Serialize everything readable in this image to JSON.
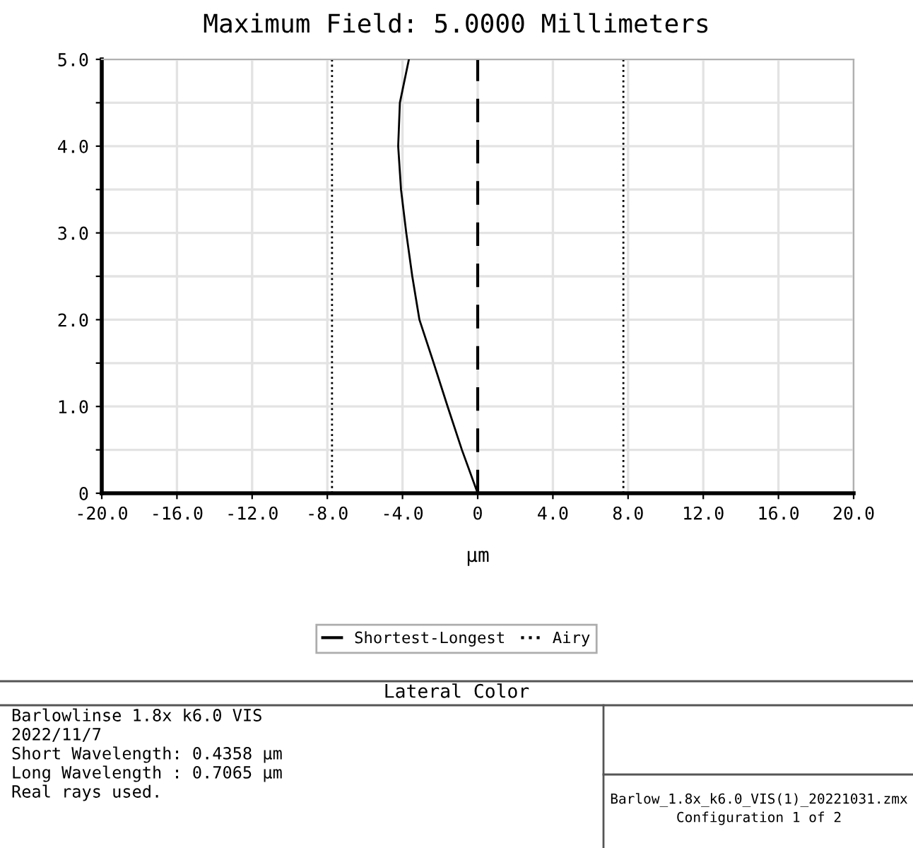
{
  "chart_data": {
    "type": "line",
    "title": "Maximum Field: 5.0000 Millimeters",
    "xlabel": "µm",
    "series": [
      {
        "name": "Shortest-Longest",
        "color": "#000000",
        "x": [
          0,
          -0.84,
          -1.6,
          -2.34,
          -3.1,
          -3.48,
          -3.8,
          -4.08,
          -4.23,
          -4.14,
          -3.66
        ],
        "values": [
          0,
          0.5,
          1.0,
          1.5,
          2.0,
          2.5,
          3.0,
          3.5,
          4.0,
          4.5,
          5.0
        ]
      }
    ],
    "ref_lines": [
      {
        "axis": "x",
        "value": -7.75,
        "label": "Airy",
        "color": "#000000",
        "line_style": "dotted"
      },
      {
        "axis": "x",
        "value": 7.75,
        "color": "#000000",
        "line_style": "dotted"
      },
      {
        "axis": "x",
        "value": 0,
        "color": "#000000",
        "line_style": "dashed"
      }
    ],
    "xlim": [
      -20,
      20
    ],
    "xticks": [
      {
        "value": -20,
        "label": "-20.0"
      },
      {
        "value": -16,
        "label": "-16.0"
      },
      {
        "value": -12,
        "label": "-12.0"
      },
      {
        "value": -8,
        "label": "-8.0"
      },
      {
        "value": -4,
        "label": "-4.0"
      },
      0,
      {
        "value": 4,
        "label": "4.0"
      },
      {
        "value": 8,
        "label": "8.0"
      },
      {
        "value": 12,
        "label": "12.0"
      },
      {
        "value": 16,
        "label": "16.0"
      },
      {
        "value": 20,
        "label": "20.0"
      }
    ],
    "ylim": [
      0,
      5
    ],
    "yticks": [
      0,
      {
        "value": 0.5,
        "label": null
      },
      {
        "value": 1,
        "label": "1.0"
      },
      {
        "value": 1.5,
        "label": null
      },
      {
        "value": 2,
        "label": "2.0"
      },
      {
        "value": 2.5,
        "label": null
      },
      {
        "value": 3,
        "label": "3.0"
      },
      {
        "value": 3.5,
        "label": null
      },
      {
        "value": 4,
        "label": "4.0"
      },
      {
        "value": 4.5,
        "label": null
      },
      {
        "value": 5,
        "label": "5.0"
      }
    ],
    "grid": true,
    "legend": "bottom",
    "marker": "none",
    "line_style": "solid",
    "annotations": [
      "Lateral Color",
      "Barlowlinse 1.8x k6.0 VIS",
      "2022/11/7",
      "Short Wavelength: 0.4358 µm",
      "Long Wavelength : 0.7065 µm",
      "Real rays used.",
      "Barlow_1.8x_k6.0_VIS(1)_20221031.zmx",
      "Configuration 1 of 2"
    ]
  }
}
